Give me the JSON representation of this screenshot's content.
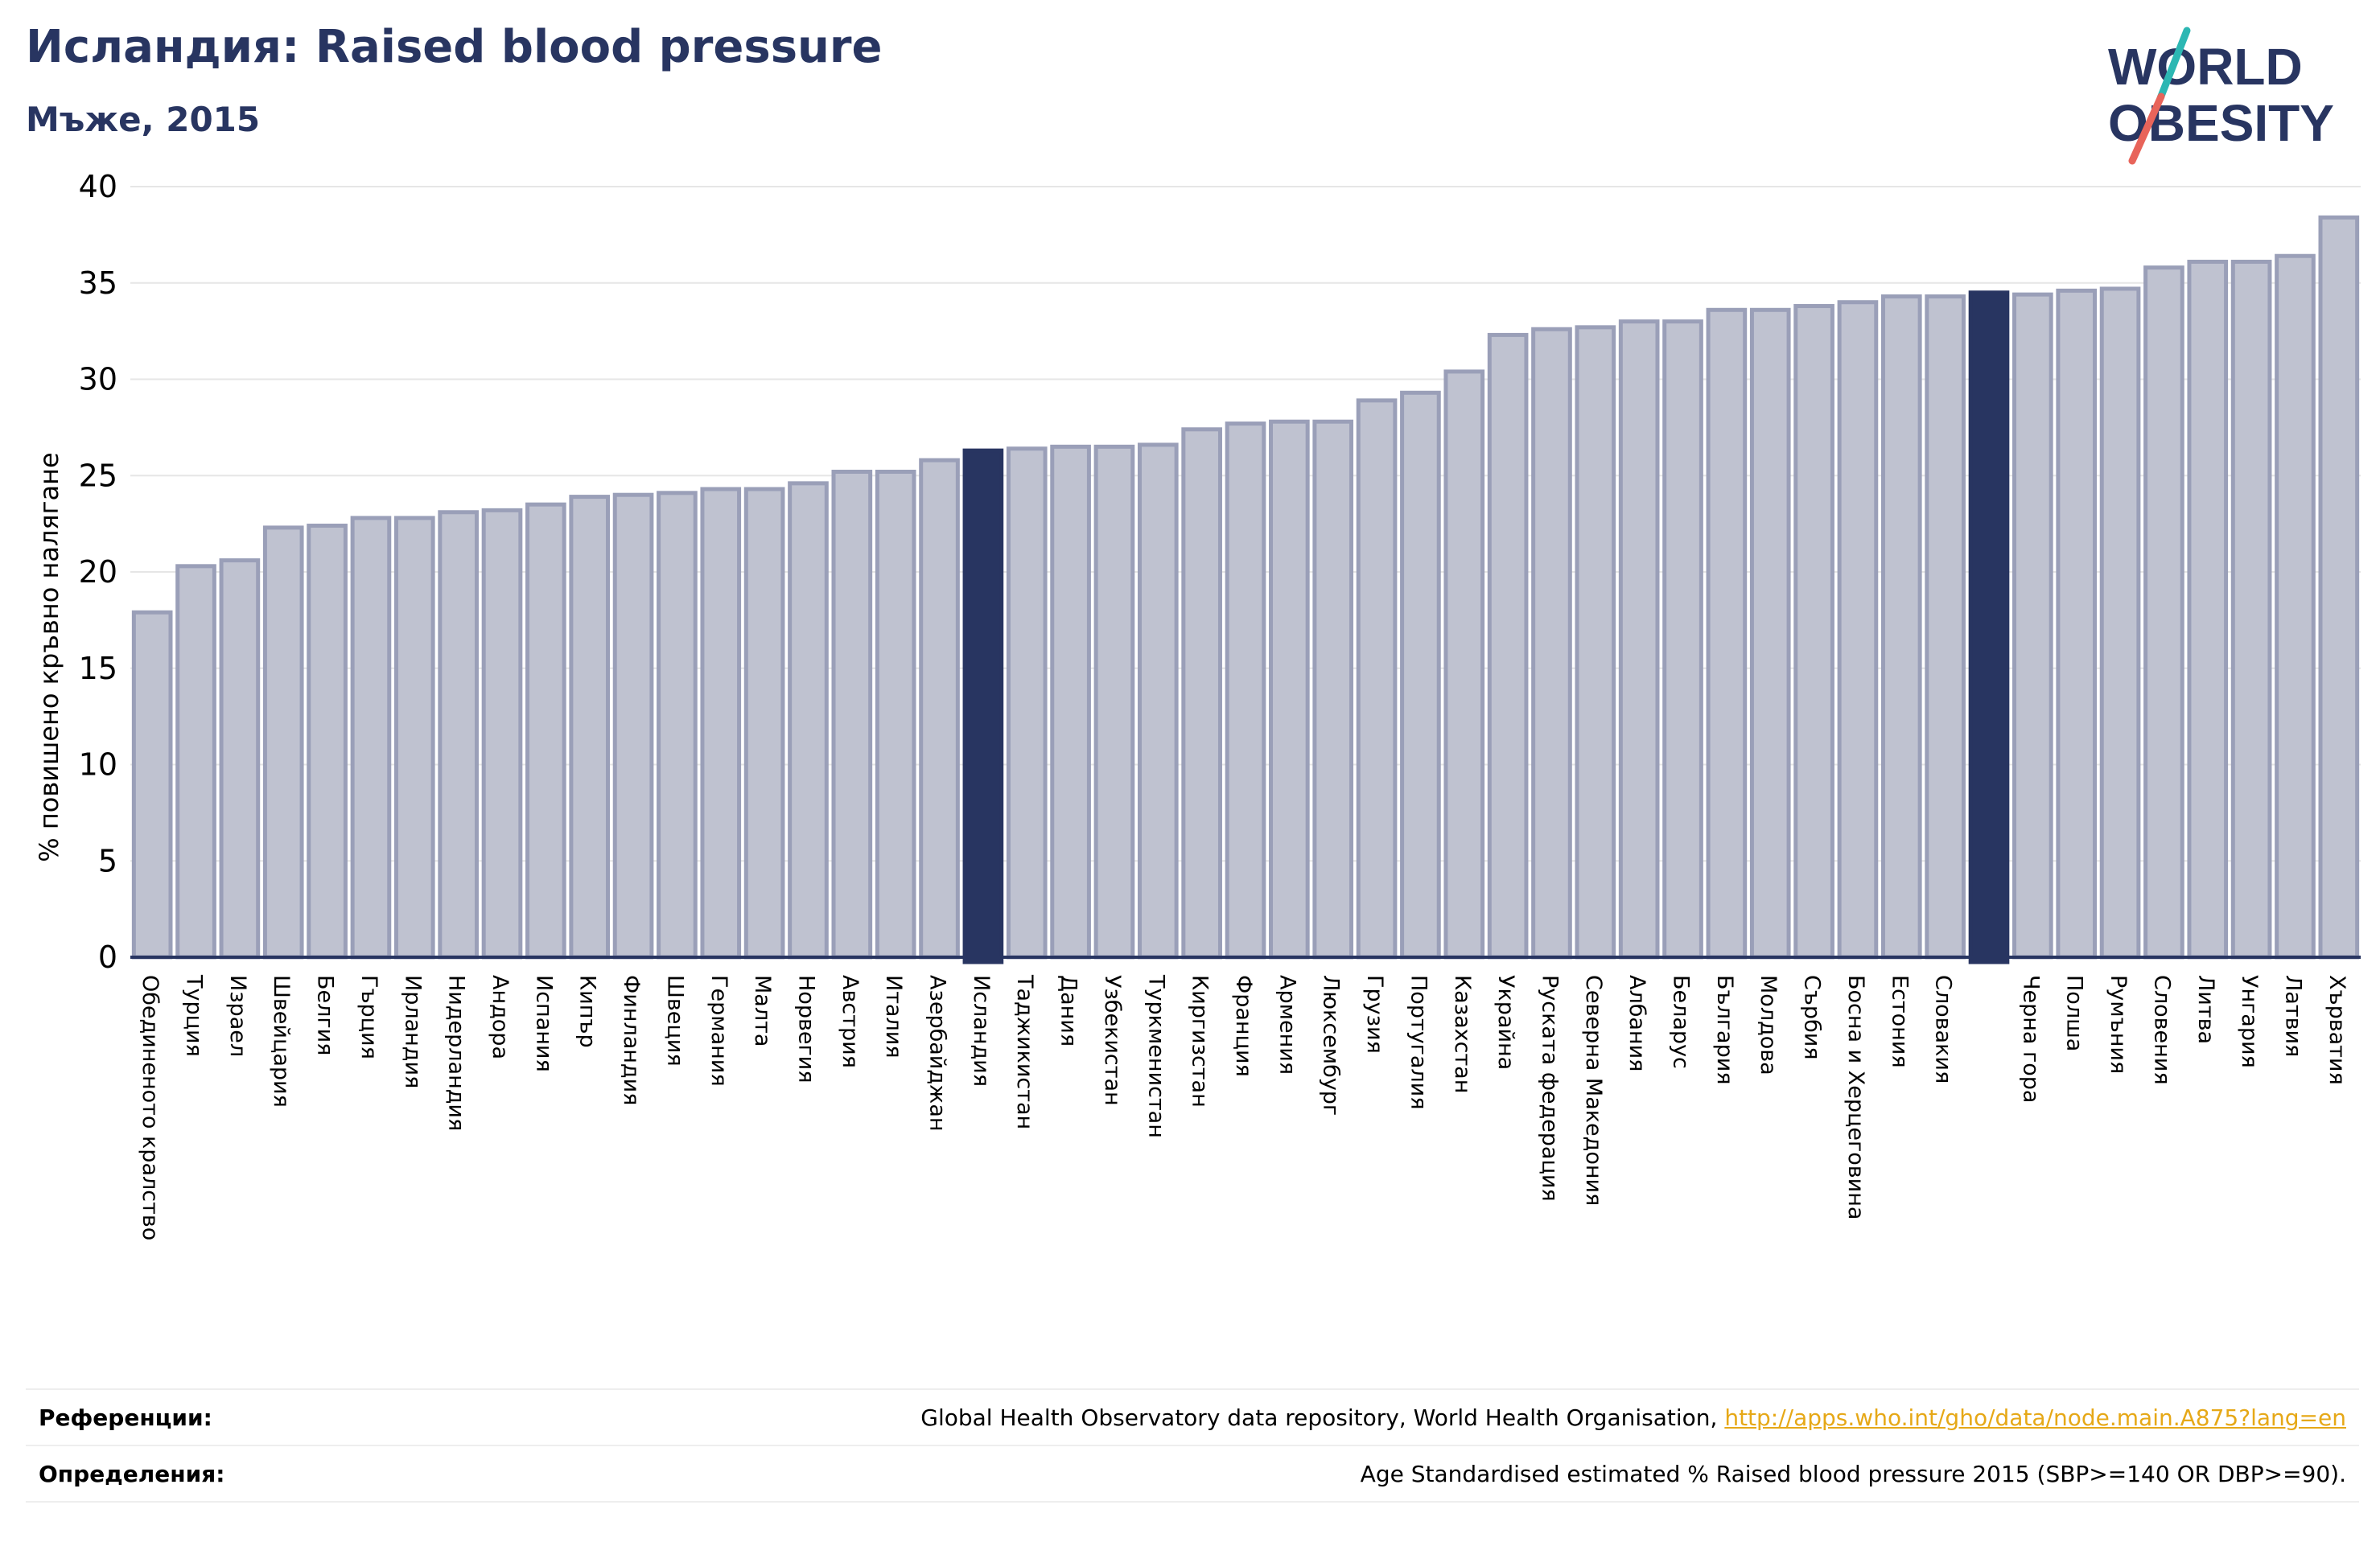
{
  "header": {
    "title": "Исландия: Raised blood pressure",
    "subtitle": "Мъже, 2015"
  },
  "logo": {
    "line1": "WORLD",
    "line2": "OBESITY"
  },
  "colors": {
    "bar": "#bfc2d0",
    "bar_border": "#9a9fb8",
    "highlight": "#283561",
    "title": "#283561",
    "link": "#e6a817"
  },
  "chart_data": {
    "type": "bar",
    "ylabel": "% повишено кръвно налягане",
    "ylim": [
      0,
      40
    ],
    "yticks": [
      0,
      5,
      10,
      15,
      20,
      25,
      30,
      35,
      40
    ],
    "grid": true,
    "categories": [
      "Обединеното кралство",
      "Турция",
      "Израел",
      "Швейцария",
      "Белгия",
      "Гърция",
      "Ирландия",
      "Нидерландия",
      "Андора",
      "Испания",
      "Кипър",
      "Финландия",
      "Швеция",
      "Германия",
      "Малта",
      "Норвегия",
      "Австрия",
      "Италия",
      "Азербайджан",
      "Исландия",
      "Таджикистан",
      "Дания",
      "Узбекистан",
      "Туркменистан",
      "Киргизстан",
      "Франция",
      "Армения",
      "Люксембург",
      "Грузия",
      "Португалия",
      "Казахстан",
      "Украйна",
      "Руската федерация",
      "Северна Македония",
      "Албания",
      "Беларус",
      "България",
      "Молдова",
      "Сърбия",
      "Босна и Херцеговина",
      "Естония",
      "Словакия",
      "",
      "Черна гора",
      "Полша",
      "Румъния",
      "Словения",
      "Литва",
      "Унгария",
      "Латвия",
      "Хърватия"
    ],
    "values": [
      17.9,
      20.3,
      20.6,
      22.3,
      22.4,
      22.8,
      22.8,
      23.1,
      23.2,
      23.5,
      23.9,
      24.0,
      24.1,
      24.3,
      24.3,
      24.6,
      25.2,
      25.2,
      25.8,
      26.3,
      26.4,
      26.5,
      26.5,
      26.6,
      27.4,
      27.7,
      27.8,
      27.8,
      28.9,
      29.3,
      30.4,
      32.3,
      32.6,
      32.7,
      33.0,
      33.0,
      33.6,
      33.6,
      33.8,
      34.0,
      34.3,
      34.3,
      34.5,
      34.4,
      34.6,
      34.7,
      35.8,
      36.1,
      36.1,
      36.4,
      38.4
    ],
    "highlight_indices": [
      19,
      42
    ]
  },
  "footer": {
    "references_label": "Референции:",
    "references_text": "Global Health Observatory data repository, World Health Organisation, ",
    "references_link": "http://apps.who.int/gho/data/node.main.A875?lang=en",
    "definitions_label": "Определения:",
    "definitions_text": "Age Standardised estimated % Raised blood pressure 2015 (SBP>=140 OR DBP>=90)."
  }
}
